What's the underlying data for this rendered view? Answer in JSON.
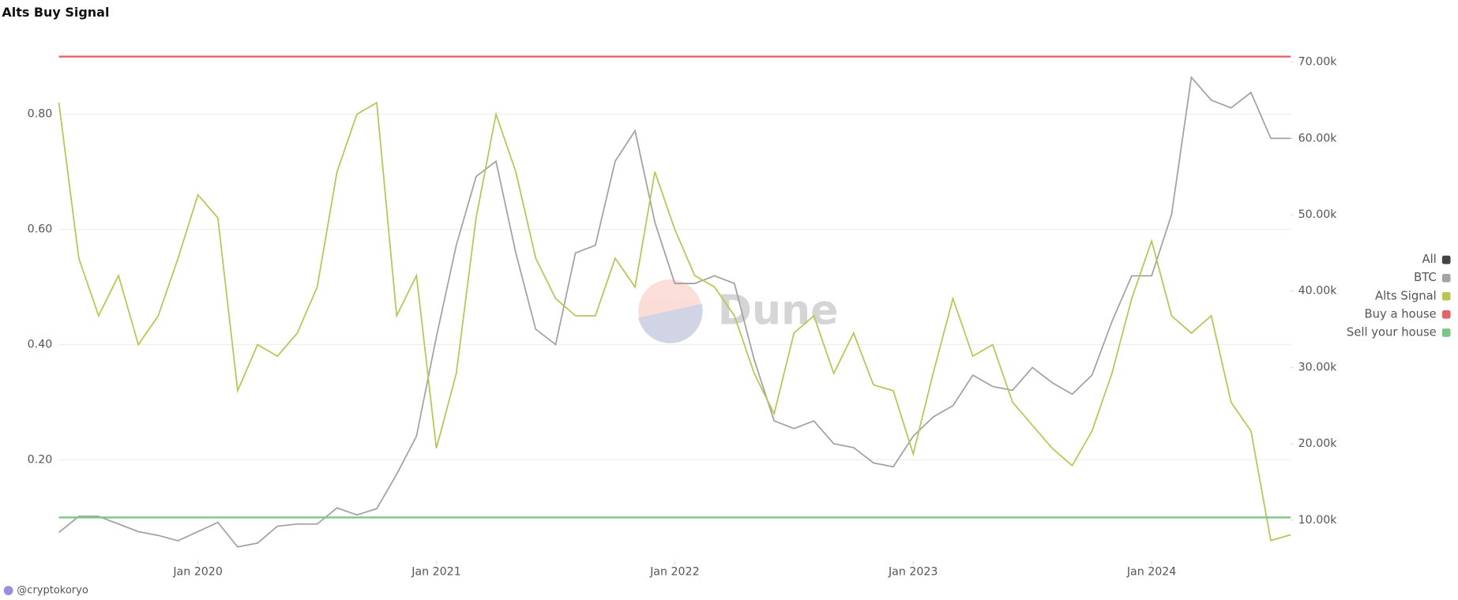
{
  "chart_data": {
    "type": "line",
    "title": "Alts Buy Signal",
    "watermark": "Dune",
    "footer": "@cryptokoryo",
    "x": [
      "2019-06",
      "2019-07",
      "2019-08",
      "2019-09",
      "2019-10",
      "2019-11",
      "2019-12",
      "2020-01",
      "2020-02",
      "2020-03",
      "2020-04",
      "2020-05",
      "2020-06",
      "2020-07",
      "2020-08",
      "2020-09",
      "2020-10",
      "2020-11",
      "2020-12",
      "2021-01",
      "2021-02",
      "2021-03",
      "2021-04",
      "2021-05",
      "2021-06",
      "2021-07",
      "2021-08",
      "2021-09",
      "2021-10",
      "2021-11",
      "2021-12",
      "2022-01",
      "2022-02",
      "2022-03",
      "2022-04",
      "2022-05",
      "2022-06",
      "2022-07",
      "2022-08",
      "2022-09",
      "2022-10",
      "2022-11",
      "2022-12",
      "2023-01",
      "2023-02",
      "2023-03",
      "2023-04",
      "2023-05",
      "2023-06",
      "2023-07",
      "2023-08",
      "2023-09",
      "2023-10",
      "2023-11",
      "2023-12",
      "2024-01",
      "2024-02",
      "2024-03",
      "2024-04",
      "2024-05",
      "2024-06",
      "2024-07",
      "2024-08"
    ],
    "xlim": [
      "2019-06",
      "2024-08"
    ],
    "xticks": [
      {
        "value": "2020-01",
        "label": "Jan 2020"
      },
      {
        "value": "2021-01",
        "label": "Jan 2021"
      },
      {
        "value": "2022-01",
        "label": "Jan 2022"
      },
      {
        "value": "2023-01",
        "label": "Jan 2023"
      },
      {
        "value": "2024-01",
        "label": "Jan 2024"
      }
    ],
    "ylim": [
      0.025,
      0.925
    ],
    "yticks": [
      {
        "value": 0.2,
        "label": "0.20"
      },
      {
        "value": 0.4,
        "label": "0.40"
      },
      {
        "value": 0.6,
        "label": "0.60"
      },
      {
        "value": 0.8,
        "label": "0.80"
      }
    ],
    "y2lim": [
      4700,
      72600
    ],
    "y2ticks": [
      {
        "value": 10000,
        "label": "10.00k"
      },
      {
        "value": 20000,
        "label": "20.00k"
      },
      {
        "value": 30000,
        "label": "30.00k"
      },
      {
        "value": 40000,
        "label": "40.00k"
      },
      {
        "value": 50000,
        "label": "50.00k"
      },
      {
        "value": 60000,
        "label": "60.00k"
      },
      {
        "value": 70000,
        "label": "70.00k"
      }
    ],
    "grid": true,
    "legend": {
      "position": "right",
      "all_label": "All",
      "all_color": "#444444"
    },
    "series": [
      {
        "name": "BTC",
        "color": "#a3a3a3",
        "axis": "y2",
        "values": [
          8400,
          10500,
          10500,
          9500,
          8500,
          8000,
          7300,
          8500,
          9700,
          6500,
          7000,
          9200,
          9500,
          9500,
          11600,
          10700,
          11500,
          16000,
          21000,
          34000,
          46000,
          55000,
          57000,
          45000,
          35000,
          33000,
          45000,
          46000,
          57000,
          61000,
          49000,
          41000,
          41000,
          42000,
          41000,
          31000,
          23000,
          22000,
          23000,
          20000,
          19500,
          17500,
          17000,
          21000,
          23500,
          25000,
          29000,
          27500,
          27000,
          30000,
          28000,
          26500,
          29000,
          36000,
          42000,
          42000,
          50000,
          68000,
          65000,
          64000,
          66000,
          60000,
          60000
        ]
      },
      {
        "name": "Alts Signal",
        "color": "#bcc457",
        "axis": "y",
        "values": [
          0.82,
          0.55,
          0.45,
          0.52,
          0.4,
          0.45,
          0.55,
          0.66,
          0.62,
          0.32,
          0.4,
          0.38,
          0.42,
          0.5,
          0.7,
          0.8,
          0.82,
          0.45,
          0.52,
          0.22,
          0.35,
          0.62,
          0.8,
          0.7,
          0.55,
          0.48,
          0.45,
          0.45,
          0.55,
          0.5,
          0.7,
          0.6,
          0.52,
          0.5,
          0.45,
          0.35,
          0.28,
          0.42,
          0.45,
          0.35,
          0.42,
          0.33,
          0.32,
          0.21,
          0.35,
          0.48,
          0.38,
          0.4,
          0.3,
          0.26,
          0.22,
          0.19,
          0.25,
          0.35,
          0.48,
          0.58,
          0.45,
          0.42,
          0.45,
          0.3,
          0.25,
          0.06,
          0.07
        ]
      }
    ],
    "hlines": [
      {
        "name": "Buy a house",
        "color": "#e06666",
        "value": 0.9
      },
      {
        "name": "Sell your house",
        "color": "#7cc68a",
        "value": 0.1
      }
    ]
  }
}
